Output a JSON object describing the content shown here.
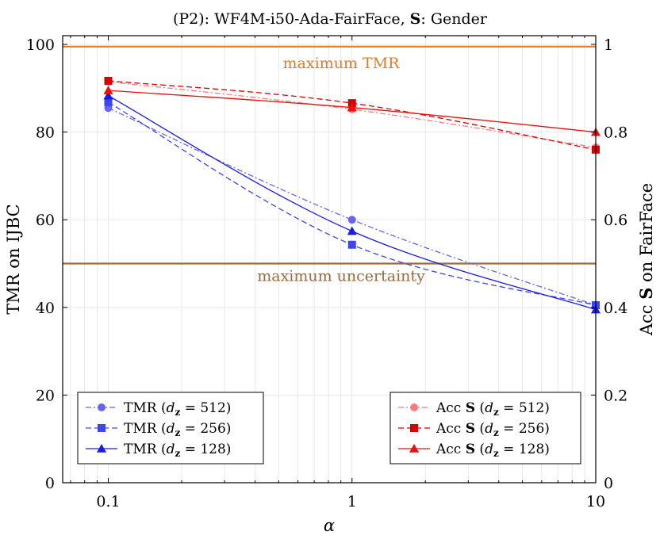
{
  "chart_data": {
    "type": "line",
    "title": "(P2):  WF4M-i50-Ada-FairFace,  S: Gender",
    "xlabel": "α",
    "ylabel_left": "TMR on IJBC",
    "ylabel_right": "Acc S on FairFace",
    "x_scale": "log",
    "xlim": [
      0.065,
      10
    ],
    "ylim_left": [
      0,
      102
    ],
    "ylim_right": [
      0,
      1.02
    ],
    "x_ticks": [
      0.1,
      1,
      10
    ],
    "x_tick_labels": [
      "0.1",
      "1",
      "10"
    ],
    "y_left_ticks": [
      0,
      20,
      40,
      60,
      80,
      100
    ],
    "y_left_tick_labels": [
      "0",
      "20",
      "40",
      "60",
      "80",
      "100"
    ],
    "y_right_ticks": [
      0,
      0.2,
      0.4,
      0.6,
      0.8,
      1
    ],
    "y_right_tick_labels": [
      "0",
      "0.2",
      "0.4",
      "0.6",
      "0.8",
      "1"
    ],
    "reference_lines": [
      {
        "label": "maximum TMR",
        "value_left": 99.5,
        "color": "#e07b2a"
      },
      {
        "label": "maximum uncertainty",
        "value_left": 50,
        "color": "#9a6a3a"
      }
    ],
    "x": [
      0.1,
      1,
      10
    ],
    "series": [
      {
        "name": "TMR (dz = 512)",
        "legend": "TMR (",
        "sub": "512",
        "axis": "left",
        "values": [
          85.5,
          60.0,
          40.5
        ],
        "color": "#6666f0",
        "dash": "7,3,2,3",
        "marker": "circle"
      },
      {
        "name": "TMR (dz = 256)",
        "legend": "TMR (",
        "sub": "256",
        "axis": "left",
        "values": [
          86.8,
          54.3,
          40.5
        ],
        "color": "#3b45f0",
        "dash": "7,4",
        "marker": "square"
      },
      {
        "name": "TMR (dz = 128)",
        "legend": "TMR (",
        "sub": "128",
        "axis": "left",
        "values": [
          88.3,
          57.4,
          39.5
        ],
        "color": "#1a1ae8",
        "dash": "",
        "marker": "triangle"
      },
      {
        "name": "Acc S (dz = 512)",
        "legend": "Acc ",
        "sub": "512",
        "axis": "right",
        "values": [
          0.915,
          0.852,
          0.765
        ],
        "color": "#ff7a7a",
        "dash": "7,3,2,3",
        "marker": "circle"
      },
      {
        "name": "Acc S (dz = 256)",
        "legend": "Acc ",
        "sub": "256",
        "axis": "right",
        "values": [
          0.917,
          0.866,
          0.76
        ],
        "color": "#d60000",
        "dash": "7,4",
        "marker": "square"
      },
      {
        "name": "Acc S (dz = 128)",
        "legend": "Acc ",
        "sub": "128",
        "axis": "right",
        "values": [
          0.895,
          0.856,
          0.8
        ],
        "color": "#ee1010",
        "dash": "",
        "marker": "triangle"
      }
    ],
    "legend_placement": [
      "bottom-left",
      "bottom-right"
    ]
  }
}
